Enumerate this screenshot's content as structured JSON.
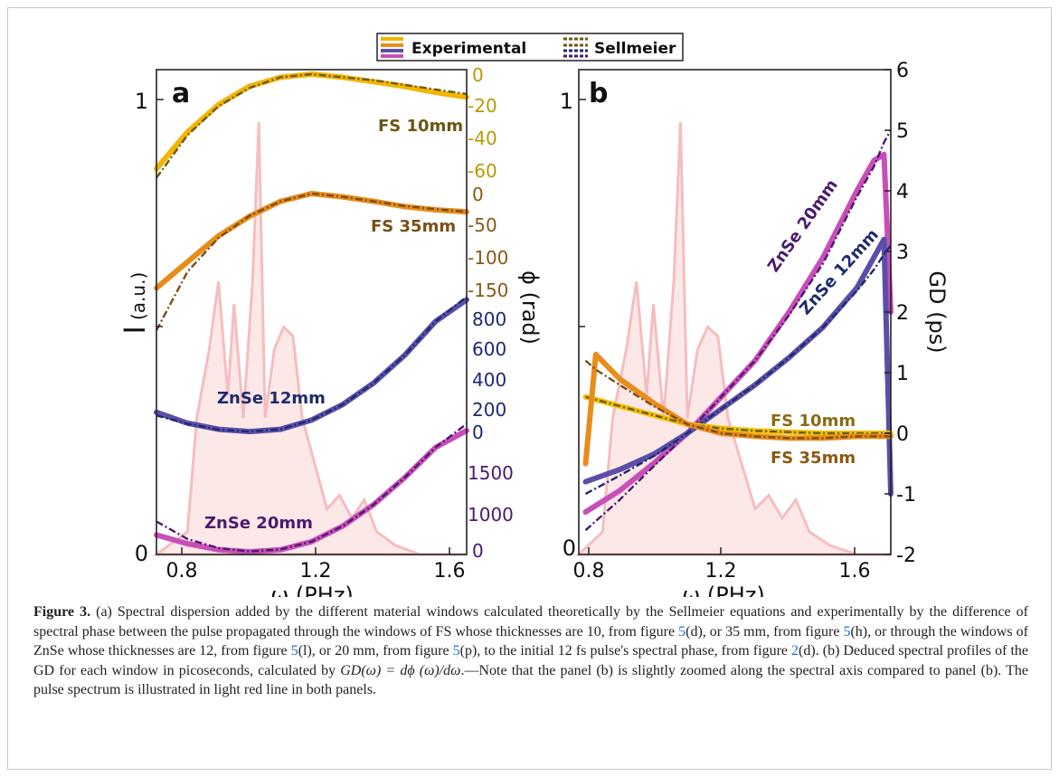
{
  "figure": {
    "legend": {
      "placement": "top-center",
      "entries": [
        {
          "label": "Experimental",
          "colors": [
            "#f2b500",
            "#e88c1a",
            "#5a4fa8",
            "#c94fb8"
          ]
        },
        {
          "label": "Sellmeier",
          "colors": [
            "#6b5a12",
            "#7a4e15",
            "#1d2a6e",
            "#4a1a6e"
          ]
        }
      ]
    },
    "caption": {
      "lead": "Figure 3.",
      "p1": " (a) Spectral dispersion added by the different material windows calculated theoretically by the Sellmeier equations and experimentally by the difference of spectral phase between the pulse propagated through the windows of FS whose thicknesses are 10, from figure ",
      "r1": "5",
      "p2": "(d), or 35 mm, from figure ",
      "r2": "5",
      "p3": "(h), or through the windows of ZnSe whose thicknesses are 12, from figure ",
      "r3": "5",
      "p4": "(l), or 20 mm, from figure ",
      "r4": "5",
      "p5": "(p), to the initial 12 fs pulse's spectral phase, from figure ",
      "r5": "2",
      "p6": "(d). (b) Deduced spectral profiles of the GD for each window in picoseconds, calculated by ",
      "math": "GD(ω) = dϕ (ω)/dω",
      "p7": ".—Note that the panel (b) is slightly zoomed along the spectral axis compared to panel (b). The pulse spectrum is illustrated in light red line in both panels."
    }
  },
  "chart_data": [
    {
      "panel": "a",
      "type": "line",
      "xlabel": "ω (PHz)",
      "xlim": [
        0.75,
        1.75
      ],
      "xticks": [
        "0.8",
        "1.2",
        "1.6"
      ],
      "ylabel_left": "I (a.u.)",
      "ylabel_left_main": "I",
      "ylabel_left_unit": "(a.u.)",
      "left_ticks": [
        "1",
        "0"
      ],
      "ylabel_right": "ϕ (rad)",
      "grid": false,
      "phase_axes": [
        {
          "color": "#b89a00",
          "ticks": [
            "0",
            "-20",
            "-40",
            "-60"
          ]
        },
        {
          "color": "#8a5a12",
          "ticks": [
            "0",
            "-50",
            "-100",
            "-150"
          ]
        },
        {
          "color": "#1d2a6e",
          "ticks": [
            "800",
            "600",
            "400",
            "200",
            "0"
          ]
        },
        {
          "color": "#4a1a6e",
          "ticks": [
            "1500",
            "1000",
            "0"
          ]
        }
      ],
      "annotations": [
        {
          "text": "FS 10mm",
          "color": "#6b5510"
        },
        {
          "text": "FS 35mm",
          "color": "#7a4e15"
        },
        {
          "text": "ZnSe 12mm",
          "color": "#1d2a6e"
        },
        {
          "text": "ZnSe 20mm",
          "color": "#4a1a6e"
        }
      ],
      "series": [
        {
          "name": "FS 10mm",
          "exp_color": "#f2b500",
          "fit_color": "#6b5a12",
          "x": [
            0.75,
            0.85,
            0.95,
            1.05,
            1.15,
            1.25,
            1.35,
            1.45,
            1.55,
            1.65,
            1.75
          ],
          "y_exp": [
            -62,
            -38,
            -20,
            -8,
            -2,
            0,
            -2,
            -5,
            -8,
            -12,
            -15
          ],
          "y_fit": [
            -68,
            -40,
            -21,
            -9,
            -2,
            0,
            -2,
            -4,
            -7,
            -10,
            -13
          ]
        },
        {
          "name": "FS 35mm",
          "exp_color": "#e88c1a",
          "fit_color": "#7a4e15",
          "x": [
            0.75,
            0.85,
            0.95,
            1.05,
            1.15,
            1.25,
            1.35,
            1.45,
            1.55,
            1.65,
            1.75
          ],
          "y_exp": [
            -145,
            -105,
            -65,
            -35,
            -12,
            0,
            -5,
            -12,
            -20,
            -25,
            -28
          ],
          "y_fit": [
            -210,
            -120,
            -68,
            -34,
            -12,
            0,
            -5,
            -12,
            -19,
            -24,
            -28
          ]
        },
        {
          "name": "ZnSe 12mm",
          "exp_color": "#5a4fa8",
          "fit_color": "#1d2a6e",
          "x": [
            0.75,
            0.85,
            0.95,
            1.05,
            1.15,
            1.25,
            1.35,
            1.45,
            1.55,
            1.65,
            1.75
          ],
          "y_exp": [
            130,
            60,
            20,
            5,
            20,
            80,
            180,
            320,
            500,
            720,
            860
          ],
          "y_fit": [
            110,
            55,
            18,
            5,
            20,
            80,
            180,
            320,
            500,
            720,
            880
          ]
        },
        {
          "name": "ZnSe 20mm",
          "exp_color": "#c94fb8",
          "fit_color": "#4a1a6e",
          "x": [
            0.75,
            0.85,
            0.95,
            1.05,
            1.15,
            1.25,
            1.35,
            1.45,
            1.55,
            1.65,
            1.75
          ],
          "y_exp": [
            250,
            120,
            30,
            0,
            30,
            150,
            380,
            700,
            1100,
            1550,
            1800
          ],
          "y_fit": [
            450,
            190,
            55,
            5,
            35,
            150,
            380,
            700,
            1100,
            1550,
            1900
          ]
        }
      ],
      "spectrum": {
        "color": "#f4b8b8",
        "x": [
          0.75,
          0.85,
          0.88,
          0.92,
          0.95,
          0.98,
          1.0,
          1.03,
          1.06,
          1.08,
          1.1,
          1.13,
          1.16,
          1.19,
          1.22,
          1.26,
          1.3,
          1.34,
          1.38,
          1.42,
          1.46,
          1.52,
          1.6,
          1.75
        ],
        "y": [
          0.0,
          0.05,
          0.3,
          0.45,
          0.6,
          0.35,
          0.55,
          0.3,
          0.6,
          0.95,
          0.3,
          0.45,
          0.5,
          0.48,
          0.3,
          0.2,
          0.1,
          0.13,
          0.08,
          0.12,
          0.05,
          0.02,
          0.0,
          0.0
        ]
      }
    },
    {
      "panel": "b",
      "type": "line",
      "xlabel": "ω (PHz)",
      "xlim": [
        0.78,
        1.7
      ],
      "xticks": [
        "0.8",
        "1.2",
        "1.6"
      ],
      "left_ticks": [
        "1",
        "0"
      ],
      "ylabel_right": "GD (ps)",
      "ylim": [
        -2,
        6
      ],
      "yticks": [
        "6",
        "5",
        "4",
        "3",
        "2",
        "1",
        "0",
        "-1",
        "-2"
      ],
      "grid": false,
      "annotations": [
        {
          "text": "ZnSe 20mm",
          "color": "#4a1a6e"
        },
        {
          "text": "ZnSe 12mm",
          "color": "#1d2a6e"
        },
        {
          "text": "FS 10mm",
          "color": "#8a6a12"
        },
        {
          "text": "FS 35mm",
          "color": "#8a5a12"
        }
      ],
      "series": [
        {
          "name": "ZnSe 20mm",
          "exp_color": "#c94fb8",
          "fit_color": "#4a1a6e",
          "x": [
            0.8,
            0.9,
            1.0,
            1.1,
            1.2,
            1.3,
            1.4,
            1.5,
            1.6,
            1.65,
            1.68,
            1.7
          ],
          "y_exp": [
            -1.3,
            -0.95,
            -0.5,
            0.0,
            0.6,
            1.2,
            2.0,
            2.9,
            4.0,
            4.5,
            4.6,
            2.0
          ],
          "y_fit": [
            -1.6,
            -1.1,
            -0.55,
            0.0,
            0.6,
            1.2,
            1.95,
            2.8,
            3.9,
            4.4,
            4.8,
            5.0
          ]
        },
        {
          "name": "ZnSe 12mm",
          "exp_color": "#5a4fa8",
          "fit_color": "#1d2a6e",
          "x": [
            0.8,
            0.9,
            1.0,
            1.1,
            1.2,
            1.3,
            1.4,
            1.5,
            1.6,
            1.65,
            1.68,
            1.7
          ],
          "y_exp": [
            -0.8,
            -0.6,
            -0.35,
            0.0,
            0.4,
            0.8,
            1.25,
            1.75,
            2.4,
            2.9,
            3.2,
            -1.0
          ],
          "y_fit": [
            -1.0,
            -0.7,
            -0.38,
            0.0,
            0.4,
            0.8,
            1.25,
            1.75,
            2.35,
            2.7,
            2.95,
            3.1
          ]
        },
        {
          "name": "FS 10mm",
          "exp_color": "#f2c200",
          "fit_color": "#6b5a12",
          "x": [
            0.8,
            0.9,
            1.0,
            1.1,
            1.2,
            1.3,
            1.4,
            1.5,
            1.6,
            1.7
          ],
          "y_exp": [
            0.6,
            0.45,
            0.3,
            0.15,
            0.08,
            0.04,
            0.02,
            0.0,
            0.0,
            0.0
          ],
          "y_fit": [
            0.6,
            0.45,
            0.3,
            0.15,
            0.08,
            0.04,
            0.02,
            0.0,
            0.0,
            0.0
          ]
        },
        {
          "name": "FS 35mm",
          "exp_color": "#e88c1a",
          "fit_color": "#7a4e15",
          "x": [
            0.8,
            0.83,
            0.9,
            1.0,
            1.1,
            1.2,
            1.3,
            1.4,
            1.5,
            1.6,
            1.7
          ],
          "y_exp": [
            -0.5,
            1.3,
            0.9,
            0.5,
            0.15,
            0.0,
            -0.05,
            -0.08,
            -0.08,
            -0.05,
            -0.05
          ],
          "y_fit": [
            1.2,
            1.05,
            0.8,
            0.45,
            0.15,
            0.0,
            -0.05,
            -0.08,
            -0.08,
            -0.05,
            -0.05
          ]
        }
      ],
      "spectrum": {
        "color": "#f4b8b8",
        "x": [
          0.78,
          0.85,
          0.88,
          0.92,
          0.95,
          0.98,
          1.0,
          1.03,
          1.06,
          1.08,
          1.1,
          1.13,
          1.16,
          1.19,
          1.22,
          1.26,
          1.3,
          1.34,
          1.38,
          1.42,
          1.46,
          1.52,
          1.6,
          1.7
        ],
        "y": [
          0.0,
          0.05,
          0.3,
          0.45,
          0.6,
          0.35,
          0.55,
          0.3,
          0.6,
          0.95,
          0.3,
          0.45,
          0.5,
          0.48,
          0.3,
          0.2,
          0.1,
          0.13,
          0.08,
          0.12,
          0.05,
          0.02,
          0.0,
          0.0
        ]
      }
    }
  ]
}
